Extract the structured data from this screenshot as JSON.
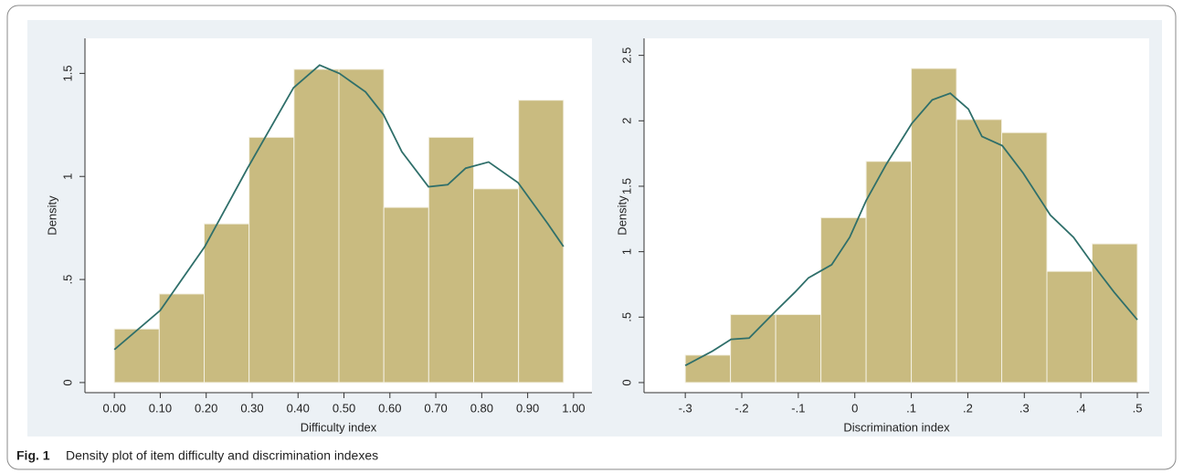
{
  "chart_data": [
    {
      "type": "histogram",
      "xlabel": "Difficulty index",
      "ylabel": "Density",
      "bins": [
        0,
        0.0978,
        0.1956,
        0.2934,
        0.3912,
        0.489,
        0.5868,
        0.6846,
        0.7824,
        0.8802,
        0.978
      ],
      "values": [
        0.26,
        0.43,
        0.77,
        1.19,
        1.52,
        1.52,
        0.85,
        1.19,
        0.94,
        1.37
      ],
      "color": "#c9bb80",
      "line": {
        "x": [
          0,
          0.1,
          0.197,
          0.29,
          0.39,
          0.447,
          0.49,
          0.547,
          0.586,
          0.626,
          0.684,
          0.726,
          0.765,
          0.815,
          0.879,
          0.944,
          0.978
        ],
        "values": [
          0.16,
          0.35,
          0.66,
          1.04,
          1.43,
          1.54,
          1.5,
          1.41,
          1.3,
          1.12,
          0.95,
          0.96,
          1.04,
          1.07,
          0.97,
          0.77,
          0.66
        ],
        "color": "#2f6f6a"
      },
      "xlim": [
        -0.064,
        1.04
      ],
      "ylim": [
        -0.049,
        1.67
      ],
      "xticks": [
        {
          "value": 0,
          "label": "0.00"
        },
        {
          "value": 0.1,
          "label": "0.10"
        },
        {
          "value": 0.2,
          "label": "0.20"
        },
        {
          "value": 0.3,
          "label": "0.30"
        },
        {
          "value": 0.4,
          "label": "0.40"
        },
        {
          "value": 0.5,
          "label": "0.50"
        },
        {
          "value": 0.6,
          "label": "0.60"
        },
        {
          "value": 0.7,
          "label": "0.70"
        },
        {
          "value": 0.8,
          "label": "0.80"
        },
        {
          "value": 0.9,
          "label": "0.90"
        },
        {
          "value": 1,
          "label": "1.00"
        }
      ],
      "yticks": [
        0,
        {
          "value": 0.5,
          "label": ".5"
        },
        1,
        1.5
      ]
    },
    {
      "type": "histogram",
      "xlabel": "Discrimination index",
      "ylabel": "Density",
      "bins": [
        -0.3,
        -0.22,
        -0.14,
        -0.06,
        0.02,
        0.1,
        0.18,
        0.26,
        0.34,
        0.42,
        0.5
      ],
      "values": [
        0.21,
        0.52,
        0.52,
        1.26,
        1.69,
        2.4,
        2.01,
        1.91,
        0.85,
        1.06
      ],
      "color": "#c9bb80",
      "line": {
        "x": [
          -0.3,
          -0.252,
          -0.219,
          -0.187,
          -0.139,
          -0.106,
          -0.082,
          -0.041,
          -0.009,
          0.02,
          0.056,
          0.101,
          0.137,
          0.169,
          0.201,
          0.225,
          0.261,
          0.298,
          0.346,
          0.387,
          0.427,
          0.459,
          0.5
        ],
        "values": [
          0.13,
          0.24,
          0.33,
          0.34,
          0.55,
          0.69,
          0.8,
          0.9,
          1.11,
          1.39,
          1.67,
          1.98,
          2.16,
          2.21,
          2.09,
          1.88,
          1.81,
          1.6,
          1.28,
          1.11,
          0.87,
          0.69,
          0.48
        ],
        "color": "#2f6f6a"
      },
      "xlim": [
        -0.373,
        0.521
      ],
      "ylim": [
        -0.077,
        2.63
      ],
      "xticks": [
        {
          "value": -0.3,
          "label": "-.3"
        },
        {
          "value": -0.2,
          "label": "-.2"
        },
        {
          "value": -0.1,
          "label": "-.1"
        },
        0,
        {
          "value": 0.1,
          "label": ".1"
        },
        {
          "value": 0.2,
          "label": ".2"
        },
        {
          "value": 0.3,
          "label": ".3"
        },
        {
          "value": 0.4,
          "label": ".4"
        },
        {
          "value": 0.5,
          "label": ".5"
        }
      ],
      "yticks": [
        0,
        {
          "value": 0.5,
          "label": ".5"
        },
        1,
        1.5,
        2,
        2.5
      ]
    }
  ],
  "caption": {
    "label": "Fig. 1",
    "text": "Density plot of item difficulty and discrimination indexes"
  }
}
